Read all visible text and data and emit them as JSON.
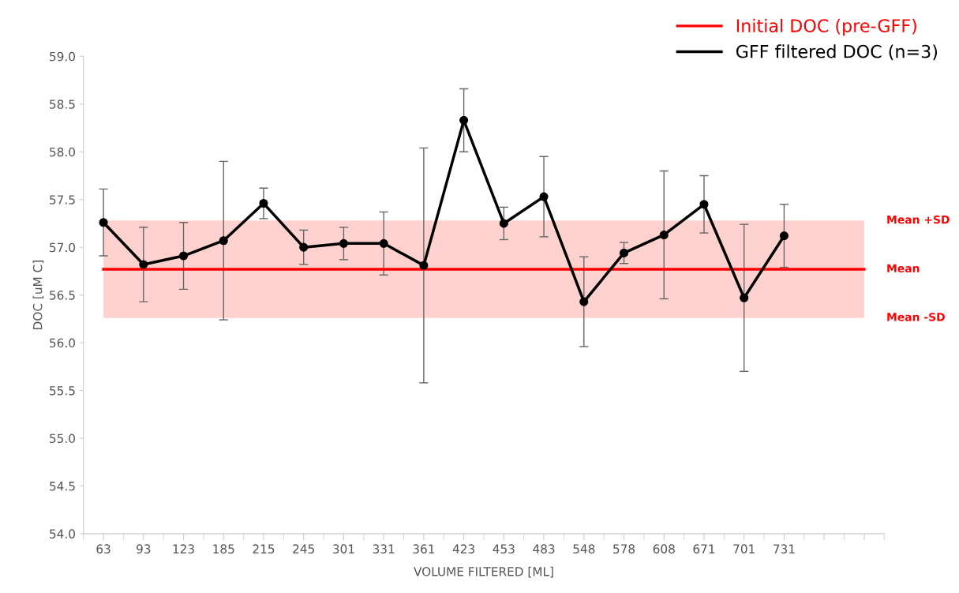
{
  "chart_data": {
    "type": "line",
    "xlabel": "VOLUME FILTERED [ML]",
    "ylabel": "DOC [uM C]",
    "categories": [
      "63",
      "93",
      "123",
      "185",
      "215",
      "245",
      "301",
      "331",
      "361",
      "423",
      "453",
      "483",
      "548",
      "578",
      "608",
      "671",
      "701",
      "731",
      null,
      null
    ],
    "series": [
      {
        "name": "Initial DOC (pre-GFF)",
        "color": "#ff0000",
        "marker": "none",
        "values": [
          56.77,
          56.77,
          56.77,
          56.77,
          56.77,
          56.77,
          56.77,
          56.77,
          56.77,
          56.77,
          56.77,
          56.77,
          56.77,
          56.77,
          56.77,
          56.77,
          56.77,
          56.77,
          56.77,
          56.77
        ]
      },
      {
        "name": "GFF filtered DOC (n=3)",
        "color": "#000000",
        "marker": "circle",
        "values": [
          57.26,
          56.82,
          56.91,
          57.07,
          57.46,
          57.0,
          57.04,
          57.04,
          56.81,
          58.33,
          57.25,
          57.53,
          56.43,
          56.94,
          57.13,
          57.45,
          56.47,
          57.12,
          null,
          null
        ],
        "errors": [
          0.35,
          0.39,
          0.35,
          0.83,
          0.16,
          0.18,
          0.17,
          0.33,
          1.23,
          0.33,
          0.17,
          0.42,
          0.47,
          0.11,
          0.67,
          0.3,
          0.77,
          0.33,
          null,
          null
        ]
      }
    ],
    "ylim": [
      54.0,
      59.0
    ],
    "yticks": [
      {
        "value": 54.0,
        "label": "54.0"
      },
      {
        "value": 54.5,
        "label": "54.5"
      },
      {
        "value": 55.0,
        "label": "55.0"
      },
      {
        "value": 55.5,
        "label": "55.5"
      },
      {
        "value": 56.0,
        "label": "56.0"
      },
      {
        "value": 56.5,
        "label": "56.5"
      },
      {
        "value": 57.0,
        "label": "57.0"
      },
      {
        "value": 57.5,
        "label": "57.5"
      },
      {
        "value": 58.0,
        "label": "58.0"
      },
      {
        "value": 58.5,
        "label": "58.5"
      },
      {
        "value": 59.0,
        "label": "59.0"
      }
    ],
    "bands": [
      {
        "axis": "y",
        "from": 56.26,
        "to": 57.28,
        "color": "#fdd2ce"
      }
    ],
    "annotations": [
      "Mean +SD",
      "Mean",
      "Mean -SD"
    ],
    "grid": false,
    "legend": "top right"
  }
}
